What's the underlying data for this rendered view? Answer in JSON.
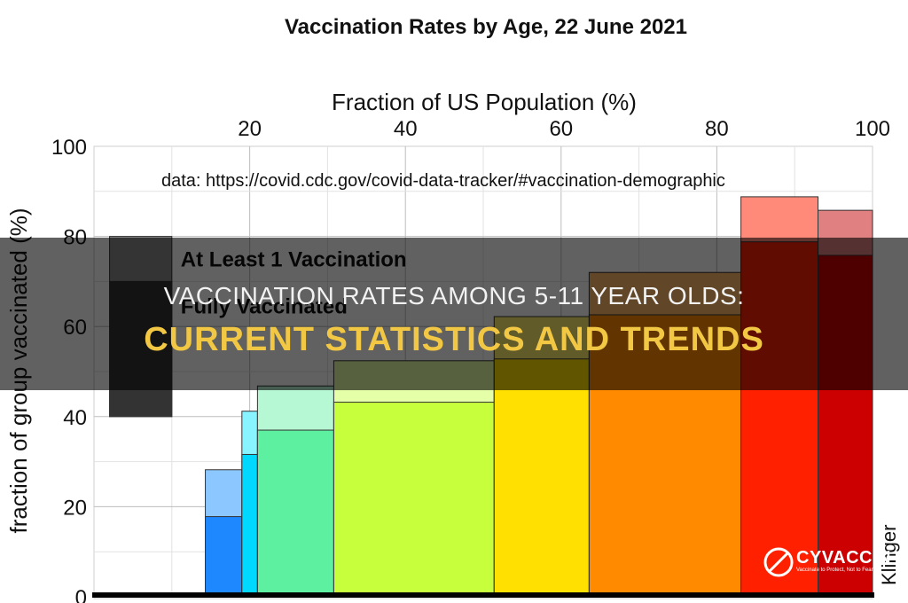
{
  "chart_data": {
    "type": "bar",
    "title": "Vaccination Rates by Age, 22 June 2021",
    "xlabel": "Fraction of US Population (%)",
    "ylabel": "fraction of group vaccinated (%)",
    "source_note": "data: https://covid.cdc.gov/covid-data-tracker/#vaccination-demographic",
    "credit": "Klinger",
    "xlim": [
      0,
      100
    ],
    "ylim": [
      0,
      100
    ],
    "x_ticks": [
      20,
      40,
      60,
      80,
      100
    ],
    "y_ticks": [
      0,
      20,
      40,
      60,
      80,
      100
    ],
    "grid": true,
    "legend_position": "upper-left",
    "legend": {
      "items": [
        {
          "label": "At Least 1 Vaccination",
          "color": "#3a3a3a"
        },
        {
          "label": "Fully Vaccinated",
          "color": "#222222"
        }
      ]
    },
    "bins": [
      {
        "x0": 14.3,
        "x1": 19.0,
        "at_least_one": 28.2,
        "fully": 17.8,
        "color": "#1e88ff",
        "light": "#8cc8ff"
      },
      {
        "x0": 19.0,
        "x1": 21.0,
        "at_least_one": 41.2,
        "fully": 31.6,
        "color": "#00d8ff",
        "light": "#88f4ff"
      },
      {
        "x0": 21.0,
        "x1": 30.8,
        "at_least_one": 46.8,
        "fully": 37.0,
        "color": "#5cf0a0",
        "light": "#b6f8d4"
      },
      {
        "x0": 30.8,
        "x1": 51.4,
        "at_least_one": 52.4,
        "fully": 43.2,
        "color": "#c8ff3c",
        "light": "#e4ffa8"
      },
      {
        "x0": 51.4,
        "x1": 63.6,
        "at_least_one": 62.2,
        "fully": 52.8,
        "color": "#ffe000",
        "light": "#fff070"
      },
      {
        "x0": 63.6,
        "x1": 83.1,
        "at_least_one": 72.0,
        "fully": 62.6,
        "color": "#ff8a00",
        "light": "#ffb866"
      },
      {
        "x0": 83.1,
        "x1": 93.0,
        "at_least_one": 88.8,
        "fully": 78.8,
        "color": "#ff2000",
        "light": "#ff8a7a"
      },
      {
        "x0": 93.0,
        "x1": 100.0,
        "at_least_one": 85.8,
        "fully": 75.8,
        "color": "#cc0000",
        "light": "#e08080"
      }
    ],
    "legend_box": {
      "x0": 2.0,
      "x1": 10.0,
      "at_least_one": 80.0,
      "fully": 70.0,
      "bottom": 40.0
    }
  },
  "overlay": {
    "line1": "VACCINATION RATES AMONG 5-11 YEAR OLDS:",
    "line2": "CURRENT STATISTICS AND TRENDS"
  },
  "watermark": {
    "text": "CYVACCIN",
    "tagline": "Vaccinate to Protect, Not to Fear"
  }
}
